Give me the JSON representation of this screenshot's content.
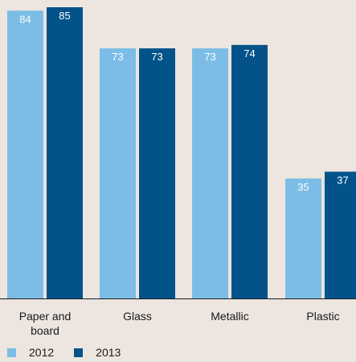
{
  "chart_data": {
    "type": "bar",
    "categories": [
      "Paper and board",
      "Glass",
      "Metallic",
      "Plastic"
    ],
    "category_lines": [
      [
        "Paper and",
        "board"
      ],
      [
        "Glass"
      ],
      [
        "Metallic"
      ],
      [
        "Plastic"
      ]
    ],
    "series": [
      {
        "name": "2012",
        "values": [
          84,
          73,
          73,
          35
        ],
        "color": "#7bbde6"
      },
      {
        "name": "2013",
        "values": [
          85,
          73,
          74,
          37
        ],
        "color": "#03538a"
      }
    ],
    "ylim": [
      0,
      85
    ],
    "grid": false,
    "legend_position": "bottom-left"
  },
  "colors": {
    "background": "#ece5e0",
    "axis": "#1a1a1a",
    "label_text_on_bar": "#ffffff"
  }
}
